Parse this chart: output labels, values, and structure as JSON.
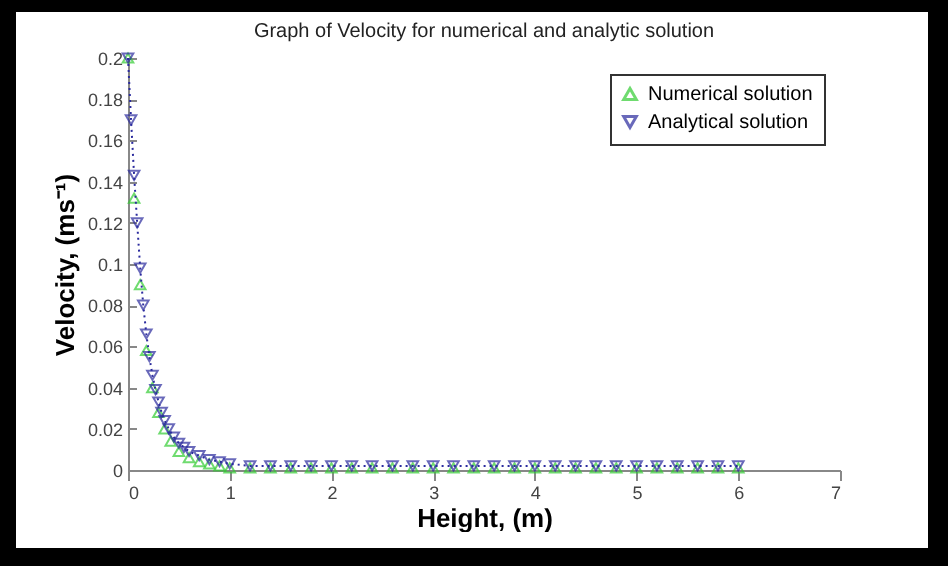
{
  "chart_data": {
    "type": "scatter",
    "title": "Graph of Velocity for numerical and analytic solution",
    "xlabel": "Height, (m)",
    "ylabel": "Velocity, (ms⁻¹)",
    "xlim": [
      0,
      7
    ],
    "xticks": [
      0,
      1,
      2,
      3,
      4,
      5,
      6,
      7
    ],
    "ylim": [
      0,
      0.2
    ],
    "yticks": [
      0,
      0.02,
      0.04,
      0.06,
      0.08,
      0.1,
      0.12,
      0.14,
      0.16,
      0.18,
      0.2
    ],
    "grid": false,
    "legend": "top right",
    "series": [
      {
        "name": "Numerical solution",
        "type": "scatter",
        "color": "#33cc33",
        "marker": "triangle",
        "x": [
          0,
          0.06,
          0.12,
          0.18,
          0.24,
          0.3,
          0.36,
          0.42,
          0.5,
          0.6,
          0.7,
          0.8,
          0.9,
          1,
          1.2,
          1.4,
          1.6,
          1.8,
          2,
          2.2,
          2.4,
          2.6,
          2.8,
          3,
          3.2,
          3.4,
          3.6,
          3.8,
          4,
          4.2,
          4.4,
          4.6,
          4.8,
          5,
          5.2,
          5.4,
          5.6,
          5.8,
          6
        ],
        "values": [
          0.2,
          0.132,
          0.09,
          0.058,
          0.04,
          0.028,
          0.02,
          0.014,
          0.009,
          0.006,
          0.004,
          0.003,
          0.002,
          0.001,
          0.001,
          0.001,
          0.001,
          0.001,
          0.001,
          0.001,
          0.001,
          0.001,
          0.001,
          0.001,
          0.001,
          0.001,
          0.001,
          0.001,
          0.001,
          0.001,
          0.001,
          0.001,
          0.001,
          0.001,
          0.001,
          0.001,
          0.001,
          0.001,
          0.001
        ]
      },
      {
        "name": "Analytical solution",
        "type": "line",
        "line_style": "dotted",
        "color": "#2b2b9e",
        "marker": "triangle-down",
        "x": [
          0,
          0.03,
          0.06,
          0.09,
          0.12,
          0.15,
          0.18,
          0.21,
          0.24,
          0.27,
          0.3,
          0.33,
          0.36,
          0.4,
          0.45,
          0.5,
          0.55,
          0.6,
          0.7,
          0.8,
          0.9,
          1,
          1.2,
          1.4,
          1.6,
          1.8,
          2,
          2.2,
          2.4,
          2.6,
          2.8,
          3,
          3.2,
          3.4,
          3.6,
          3.8,
          4,
          4.2,
          4.4,
          4.6,
          4.8,
          5,
          5.2,
          5.4,
          5.6,
          5.8,
          6
        ],
        "values": [
          0.2,
          0.17,
          0.143,
          0.12,
          0.098,
          0.08,
          0.066,
          0.055,
          0.046,
          0.039,
          0.033,
          0.028,
          0.024,
          0.02,
          0.016,
          0.013,
          0.011,
          0.009,
          0.007,
          0.005,
          0.004,
          0.003,
          0.002,
          0.002,
          0.002,
          0.002,
          0.002,
          0.002,
          0.002,
          0.002,
          0.002,
          0.002,
          0.002,
          0.002,
          0.002,
          0.002,
          0.002,
          0.002,
          0.002,
          0.002,
          0.002,
          0.002,
          0.002,
          0.002,
          0.002,
          0.002,
          0.002
        ]
      }
    ]
  }
}
